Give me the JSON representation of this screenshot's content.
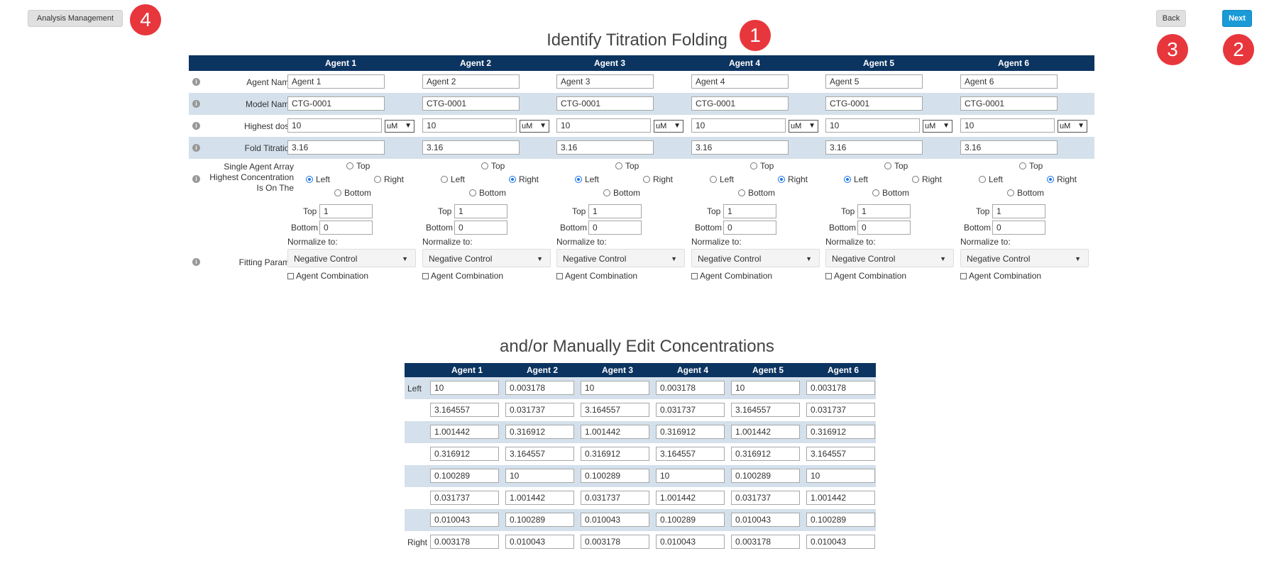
{
  "header": {
    "analysis_management": "Analysis Management",
    "back": "Back",
    "next": "Next"
  },
  "badges": [
    "1",
    "2",
    "3",
    "4"
  ],
  "title": "Identify Titration Folding",
  "subtitle": "and/or Manually Edit Concentrations",
  "info_icon": "info-icon",
  "labels": {
    "agent_name": "Agent Name",
    "model_name": "Model Name",
    "highest_dose": "Highest dose",
    "fold_titration": "Fold Titration",
    "sa_line1": "Single Agent Array",
    "sa_line2": "Highest Concentration",
    "sa_line3": "Is On The",
    "fitting_params": "Fitting Params",
    "top": "Top",
    "bottom": "Bottom",
    "left": "Left",
    "right": "Right",
    "normalize_to": "Normalize to:",
    "agent_combination": "Agent Combination"
  },
  "agents": [
    {
      "header": "Agent 1",
      "name": "Agent 1",
      "model": "CTG-0001",
      "dose": "10",
      "unit": "uM",
      "fold": "3.16",
      "position": "left",
      "fit_top": "1",
      "fit_bottom": "0",
      "normalize": "Negative Control"
    },
    {
      "header": "Agent 2",
      "name": "Agent 2",
      "model": "CTG-0001",
      "dose": "10",
      "unit": "uM",
      "fold": "3.16",
      "position": "right",
      "fit_top": "1",
      "fit_bottom": "0",
      "normalize": "Negative Control"
    },
    {
      "header": "Agent 3",
      "name": "Agent 3",
      "model": "CTG-0001",
      "dose": "10",
      "unit": "uM",
      "fold": "3.16",
      "position": "left",
      "fit_top": "1",
      "fit_bottom": "0",
      "normalize": "Negative Control"
    },
    {
      "header": "Agent 4",
      "name": "Agent 4",
      "model": "CTG-0001",
      "dose": "10",
      "unit": "uM",
      "fold": "3.16",
      "position": "right",
      "fit_top": "1",
      "fit_bottom": "0",
      "normalize": "Negative Control"
    },
    {
      "header": "Agent 5",
      "name": "Agent 5",
      "model": "CTG-0001",
      "dose": "10",
      "unit": "uM",
      "fold": "3.16",
      "position": "left",
      "fit_top": "1",
      "fit_bottom": "0",
      "normalize": "Negative Control"
    },
    {
      "header": "Agent 6",
      "name": "Agent 6",
      "model": "CTG-0001",
      "dose": "10",
      "unit": "uM",
      "fold": "3.16",
      "position": "right",
      "fit_top": "1",
      "fit_bottom": "0",
      "normalize": "Negative Control"
    }
  ],
  "concentrations": {
    "headers": [
      "Agent 1",
      "Agent 2",
      "Agent 3",
      "Agent 4",
      "Agent 5",
      "Agent 6"
    ],
    "rows": [
      {
        "label": "Left",
        "values": [
          "10",
          "0.003178",
          "10",
          "0.003178",
          "10",
          "0.003178"
        ]
      },
      {
        "label": "",
        "values": [
          "3.164557",
          "0.031737",
          "3.164557",
          "0.031737",
          "3.164557",
          "0.031737"
        ]
      },
      {
        "label": "",
        "values": [
          "1.001442",
          "0.316912",
          "1.001442",
          "0.316912",
          "1.001442",
          "0.316912"
        ]
      },
      {
        "label": "",
        "values": [
          "0.316912",
          "3.164557",
          "0.316912",
          "3.164557",
          "0.316912",
          "3.164557"
        ]
      },
      {
        "label": "",
        "values": [
          "0.100289",
          "10",
          "0.100289",
          "10",
          "0.100289",
          "10"
        ]
      },
      {
        "label": "",
        "values": [
          "0.031737",
          "1.001442",
          "0.031737",
          "1.001442",
          "0.031737",
          "1.001442"
        ]
      },
      {
        "label": "",
        "values": [
          "0.010043",
          "0.100289",
          "0.010043",
          "0.100289",
          "0.010043",
          "0.100289"
        ]
      },
      {
        "label": "Right",
        "values": [
          "0.003178",
          "0.010043",
          "0.003178",
          "0.010043",
          "0.003178",
          "0.010043"
        ]
      }
    ]
  }
}
